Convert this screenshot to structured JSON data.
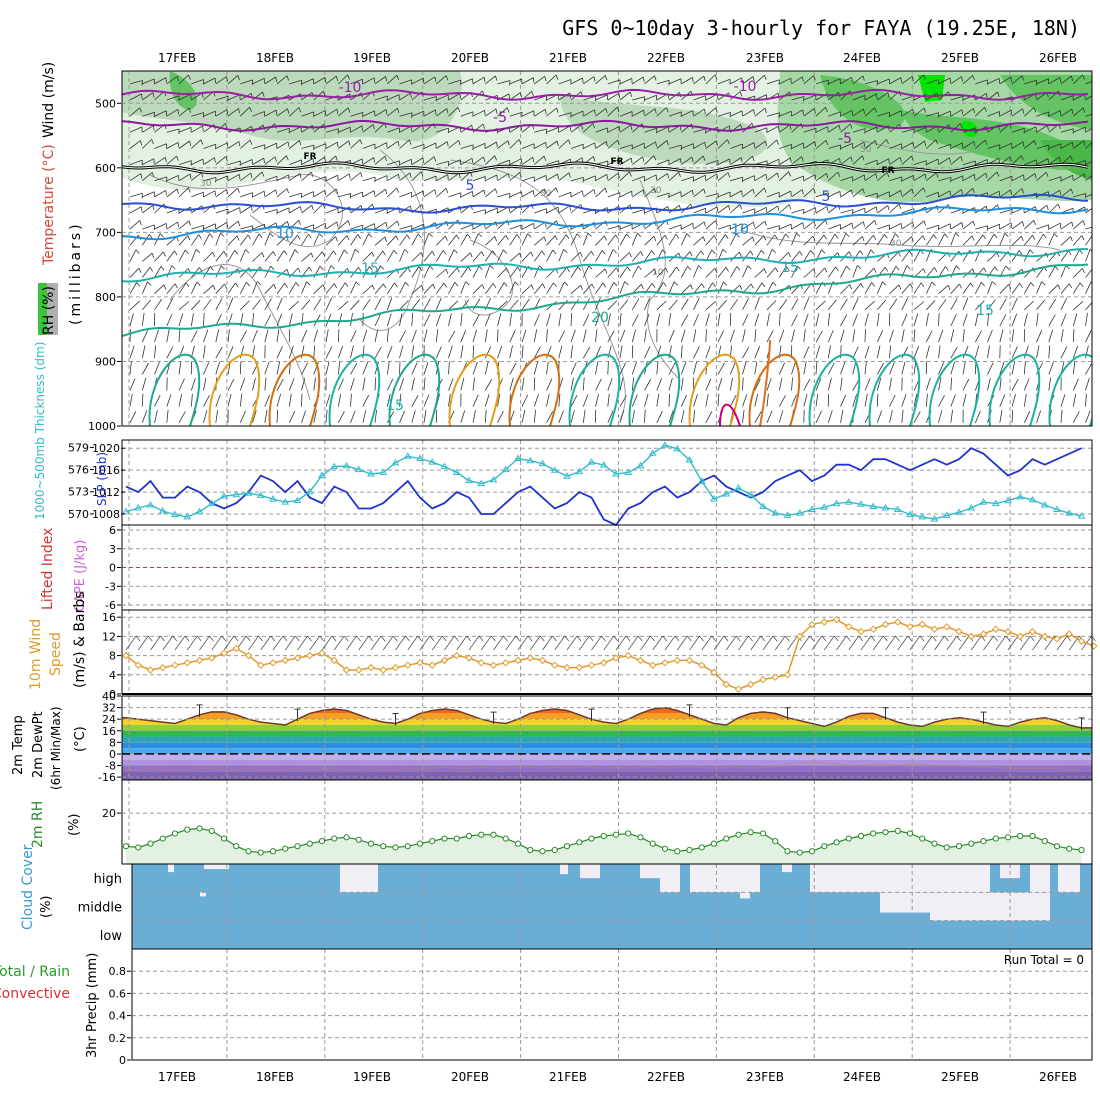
{
  "title": "GFS 0~10day 3-hourly for FAYA (19.25E, 18N)",
  "dates": [
    "17FEB",
    "18FEB",
    "19FEB",
    "20FEB",
    "21FEB",
    "22FEB",
    "23FEB",
    "24FEB",
    "25FEB",
    "26FEB"
  ],
  "run_total_label": "Run Total = 0",
  "colors": {
    "temp_neg10": "#9b1fa6",
    "temp_neg5": "#8a1b9a",
    "temp_fr": "#000000",
    "temp_5": "#2a4fd0",
    "temp_10": "#1e8fe0",
    "temp_15": "#20b0b0",
    "temp_20": "#1fa890",
    "rh_light": "#e3f1e3",
    "rh_mid": "#bcd9bc",
    "rh_green": "#62c462",
    "rh_bright": "#00e600",
    "slp": "#2233cc",
    "thickness": "#33bbcc",
    "wind10": "#e09a2a",
    "rh2m": "#2a8a2a",
    "cloud": "#6aaed6",
    "cloud_gap": "#f1eef5",
    "lifted_zero": "#d83030"
  },
  "chart_data": [
    {
      "id": "upper-air",
      "type": "heatmap",
      "ylabel": "(millibars)",
      "side_labels": [
        "RH (%)",
        "Temperature (°C)",
        "Wind (m/s)"
      ],
      "ylim": [
        1000,
        450
      ],
      "yticks": [
        500,
        600,
        700,
        800,
        900,
        1000
      ],
      "isotherms": [
        {
          "label": "-10",
          "pressure": 487
        },
        {
          "label": "-5",
          "pressure": 535
        },
        {
          "label": "FR",
          "pressure": 600
        },
        {
          "label": "5",
          "pressure": 650
        },
        {
          "label": "10",
          "pressure": 705
        },
        {
          "label": "15",
          "pressure": 770
        },
        {
          "label": "20",
          "pressure": 835
        },
        {
          "label": "15",
          "pressure": 880
        }
      ],
      "rh_contour_labels": [
        "30",
        "30",
        "30",
        "10",
        "50",
        "30"
      ]
    },
    {
      "id": "slp-thickness",
      "type": "line",
      "ylabel_left": "1000~500mb Thickness (dm)",
      "ylabel_right": "SLP (mb)",
      "thickness_ticks": [
        570,
        573,
        576,
        579
      ],
      "slp_ticks": [
        1008,
        1012,
        1016,
        1020
      ],
      "thickness_ylim": [
        568.5,
        580
      ],
      "slp_ylim": [
        1006,
        1021.5
      ],
      "series": [
        {
          "name": "SLP (mb)",
          "values": [
            1013,
            1012,
            1014,
            1011,
            1011,
            1013,
            1012,
            1010,
            1009,
            1010,
            1012,
            1015,
            1014,
            1012,
            1014,
            1011,
            1010,
            1013,
            1012,
            1009,
            1009,
            1010,
            1012,
            1014,
            1011,
            1009,
            1010,
            1012,
            1011,
            1008,
            1008,
            1010,
            1012,
            1013,
            1011,
            1009,
            1010,
            1012,
            1011,
            1007,
            1006,
            1009,
            1010,
            1012,
            1013,
            1011,
            1012,
            1014,
            1015,
            1013,
            1012,
            1011,
            1012,
            1014,
            1015,
            1016,
            1014,
            1015,
            1017,
            1017,
            1016,
            1018,
            1018,
            1017,
            1016,
            1017,
            1018,
            1017,
            1018,
            1020,
            1019,
            1017,
            1015,
            1016,
            1018,
            1017,
            1018,
            1019,
            1020
          ]
        },
        {
          "name": "Thickness (dm)",
          "values": [
            570.3,
            570.8,
            571.2,
            570.4,
            569.9,
            569.6,
            570.3,
            571.4,
            572.4,
            572.6,
            572.8,
            572.5,
            572.0,
            571.6,
            571.8,
            573.0,
            575.2,
            576.4,
            576.5,
            576.0,
            575.4,
            575.6,
            576.9,
            577.8,
            577.5,
            577.0,
            576.4,
            575.6,
            574.5,
            574.1,
            574.6,
            576.0,
            577.5,
            577.2,
            576.8,
            575.9,
            575.1,
            575.7,
            577.0,
            576.6,
            575.4,
            575.6,
            576.5,
            578.2,
            579.3,
            578.8,
            577.3,
            574.4,
            572.0,
            572.7,
            573.5,
            572.6,
            571.0,
            570.1,
            569.8,
            570.1,
            570.6,
            570.9,
            571.4,
            571.6,
            571.3,
            571.0,
            570.8,
            570.6,
            569.9,
            569.6,
            569.3,
            569.8,
            570.2,
            570.8,
            571.6,
            571.4,
            571.8,
            572.3,
            571.9,
            571.2,
            570.6,
            570.1,
            569.7
          ]
        }
      ]
    },
    {
      "id": "lifted-cape",
      "type": "line",
      "ylabel_left": "Lifted Index",
      "ylabel_right": "CAPE (J/kg)",
      "yticks": [
        6,
        3,
        0,
        -3,
        -6
      ],
      "ylim": [
        -6,
        6
      ]
    },
    {
      "id": "wind10m",
      "type": "line",
      "ylabel": "10m Wind Speed (m/s) & Barbs",
      "yticks": [
        0,
        4,
        8,
        12,
        16
      ],
      "ylim": [
        0,
        17.5
      ],
      "series": [
        {
          "name": "10m Wind Speed",
          "values": [
            8,
            6,
            5,
            5.5,
            6,
            6.5,
            7,
            7.5,
            8.5,
            9.5,
            8,
            6,
            6.5,
            7,
            7.5,
            8,
            8.5,
            7,
            5,
            5,
            5.5,
            5,
            5.5,
            6,
            6.5,
            6,
            7,
            8,
            7.5,
            6.5,
            6,
            6.5,
            7,
            7.5,
            7,
            6,
            5.5,
            5.5,
            6,
            6.5,
            7.5,
            8,
            7,
            6,
            6.5,
            7,
            7,
            6,
            4.5,
            2,
            1,
            2,
            3,
            3.5,
            4,
            12,
            14.5,
            15,
            15.5,
            14,
            13,
            13.5,
            14.5,
            15,
            14,
            14.5,
            13.5,
            14,
            13,
            12,
            12.5,
            13.5,
            13,
            12,
            13,
            12,
            11.5,
            12.5,
            11,
            10
          ]
        }
      ]
    },
    {
      "id": "temp2m",
      "type": "area",
      "ylabel": "2m Temp 2m DewPt (6hr Min/Max) (°C)",
      "yticks": [
        40,
        32,
        24,
        16,
        8,
        0,
        -8,
        -16
      ],
      "ylim": [
        -18,
        40
      ],
      "series": [
        {
          "name": "2m Temp",
          "values": [
            25,
            24,
            23,
            22,
            21,
            24,
            27,
            29,
            29,
            27,
            24,
            22,
            21,
            20,
            24,
            28,
            30,
            31,
            30,
            27,
            24,
            22,
            21,
            24,
            28,
            30,
            31,
            30,
            27,
            24,
            22,
            21,
            24,
            28,
            30,
            31,
            30,
            27,
            24,
            22,
            21,
            24,
            28,
            31,
            32,
            30,
            27,
            24,
            21,
            20,
            25,
            28,
            29,
            28,
            25,
            23,
            21,
            19,
            22,
            26,
            28,
            28,
            25,
            22,
            20,
            19,
            22,
            24,
            25,
            24,
            22,
            20,
            19,
            22,
            24,
            25,
            23,
            20,
            18
          ]
        },
        {
          "name": "2m DewPt",
          "values": [
            -11,
            -11,
            -10,
            -11,
            -11,
            -11,
            -10,
            -10,
            -11,
            -11,
            -10,
            -11,
            -11,
            -11,
            -10,
            -11,
            -11,
            -10,
            -11,
            -11,
            -10,
            -11,
            -11,
            -10,
            -11,
            -10,
            -9,
            -10,
            -10,
            -9,
            -10,
            -10,
            -9,
            -9,
            -10,
            -9,
            -10,
            -9,
            -9,
            -10,
            -9,
            -10,
            -9,
            -9,
            -10,
            -9,
            -9,
            -9,
            -10,
            -9,
            -9,
            -10,
            -9,
            -9,
            -7,
            -6,
            -6,
            -6,
            -7,
            -8,
            -8,
            -7,
            -7,
            -8,
            -7,
            -7,
            -8,
            -8,
            -8,
            -9,
            -9,
            -9,
            -10,
            -10,
            -10,
            -10,
            -10,
            -11,
            -11
          ]
        }
      ]
    },
    {
      "id": "rh2m",
      "type": "area",
      "ylabel": "2m RH (%)",
      "yticks": [
        20
      ],
      "ylim": [
        0,
        33
      ],
      "series": [
        {
          "name": "2m RH",
          "values": [
            7,
            6.5,
            8,
            10,
            12,
            13.5,
            14,
            13,
            10,
            7,
            5,
            4.5,
            5,
            6,
            7,
            8,
            9,
            10,
            10.5,
            9.5,
            8,
            7,
            6.5,
            7,
            8,
            9,
            10,
            10,
            11,
            11.5,
            11.5,
            10,
            8,
            5.5,
            5,
            5.5,
            7,
            8.5,
            10,
            11,
            11.5,
            12,
            10.5,
            8,
            6,
            5,
            5.5,
            6.5,
            8,
            10,
            11.5,
            12.5,
            12,
            9,
            5,
            4.5,
            5,
            7,
            8.5,
            10,
            11,
            12,
            12.5,
            13,
            12,
            10,
            8,
            6.5,
            7,
            8,
            9,
            10,
            10.5,
            11,
            11,
            9,
            7,
            6,
            5.5
          ]
        }
      ]
    },
    {
      "id": "cloud-cover",
      "type": "heatmap",
      "ylabel": "Cloud Cover (%)",
      "rows": [
        "high",
        "middle",
        "low"
      ]
    },
    {
      "id": "precip",
      "type": "bar",
      "ylabel": "3hr Precip (mm)",
      "side_labels": [
        "Total / Rain",
        "Convective"
      ],
      "yticks": [
        0,
        0.2,
        0.4,
        0.6,
        0.8
      ],
      "ylim": [
        0,
        1.0
      ],
      "values": []
    }
  ]
}
